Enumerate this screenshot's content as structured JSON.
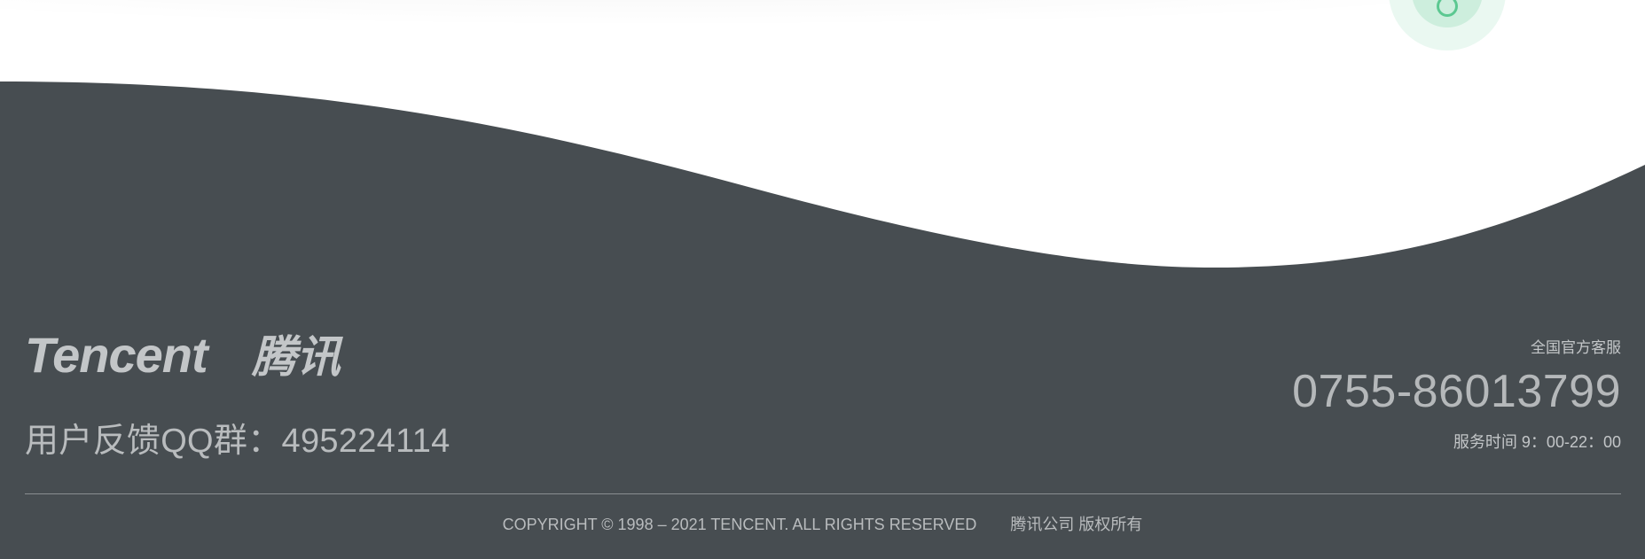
{
  "logo": {
    "wordmark": "Tencent",
    "chinese": "腾讯"
  },
  "footer": {
    "feedback": "用户反馈QQ群：495224114",
    "service": {
      "label": "全国官方客服",
      "phone": "0755-86013799",
      "hours": "服务时间 9：00-22：00"
    },
    "copyright": "COPYRIGHT © 1998 – 2021 TENCENT. ALL RIGHTS RESERVED",
    "company": "腾讯公司 版权所有"
  },
  "colors": {
    "footer_background": "#474d51",
    "text": "#b9bcbe",
    "accent_bubble": "#5cc891"
  }
}
